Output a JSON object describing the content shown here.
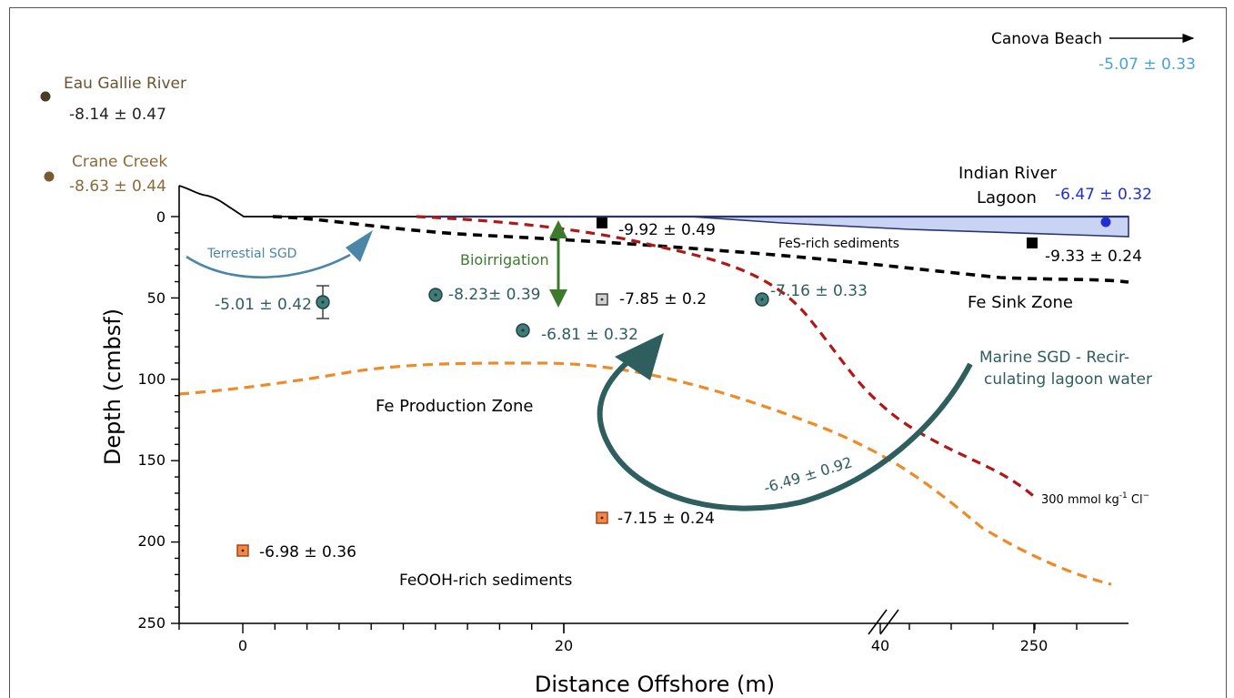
{
  "axes": {
    "xlabel": "Distance Offshore (m)",
    "ylabel": "Depth (cmbsf)",
    "x_ticks": [
      "0",
      "20",
      "40",
      "250"
    ],
    "y_ticks": [
      "0",
      "50",
      "100",
      "150",
      "200",
      "250"
    ]
  },
  "sources": [
    {
      "name": "Eau Gallie River",
      "value": "-8.14 ± 0.47",
      "color": "#4a3a26"
    },
    {
      "name": "Crane Creek",
      "value": "-8.63 ± 0.44",
      "color": "#7a5a30"
    },
    {
      "name": "Canova Beach",
      "value": "-5.07 ± 0.33",
      "color": "#4aa3d0"
    }
  ],
  "lagoon": {
    "label_line1": "Indian River",
    "label_line2": "Lagoon",
    "value": "-6.47 ± 0.32",
    "color": "#1f2fd0"
  },
  "zones": {
    "fes": "FeS-rich sediments",
    "fe_sink": "Fe Sink Zone",
    "fe_production": "Fe Production Zone",
    "feooh": "FeOOH-rich sediments"
  },
  "flows": {
    "terrestrial": "Terrestial SGD",
    "bioirrigation": "Bioirrigation",
    "marine_line1": "Marine SGD - Recir-",
    "marine_line2": "culating lagoon water",
    "marine_value": "-6.49 ± 0.92",
    "chloride_label": "300 mmol kg",
    "chloride_sup1": "-1",
    "chloride_ion": " Cl",
    "chloride_sup2": "−"
  },
  "points": {
    "circles": [
      {
        "label": "-5.01 ± 0.42"
      },
      {
        "label": "-8.23± 0.39"
      },
      {
        "label": "-6.81 ± 0.32"
      },
      {
        "label": "-7.16 ± 0.33"
      }
    ],
    "black_squares": [
      {
        "label": "-9.92 ± 0.49"
      },
      {
        "label": "-9.33 ± 0.24"
      }
    ],
    "grey_square": {
      "label": "-7.85 ± 0.2"
    },
    "orange_squares": [
      {
        "label": "-7.15 ± 0.24"
      },
      {
        "label": "-6.98 ± 0.36"
      }
    ]
  },
  "colors": {
    "teal": "#2e5e5e",
    "terrestrial_blue": "#4a86a8",
    "bioirrigation_green": "#3d7a2e",
    "chloride_red": "#b01818",
    "fe_orange": "#ee8a28",
    "lagoon_fill": "#c9d4f5",
    "source_brown": "#8a6a3a"
  }
}
